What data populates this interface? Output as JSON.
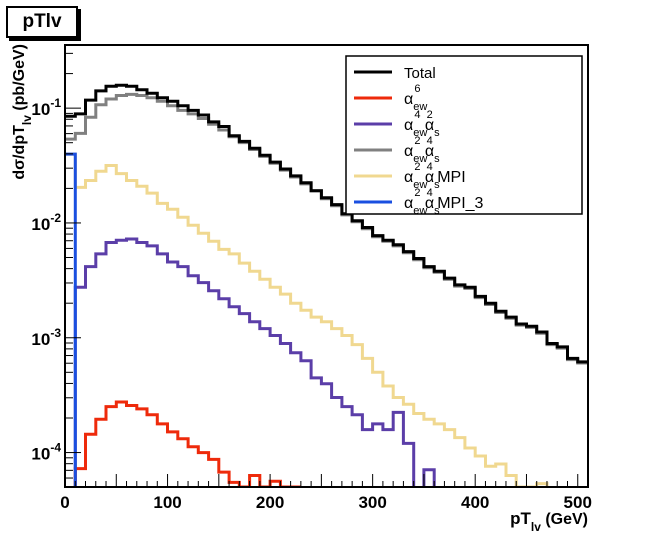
{
  "title_box": "pTlv",
  "chart_data": {
    "type": "line",
    "title": "pTlv",
    "xlabel": "pT_lv (GeV)",
    "xlabel_main": "pT",
    "xlabel_sub": "lv",
    "xlabel_unit": "(GeV)",
    "ylabel": "dσ/dpT_lv (pb/GeV)",
    "ylabel_main": "dσ/dpT",
    "ylabel_sub": "lv",
    "ylabel_unit": "(pb/GeV)",
    "xlim": [
      0,
      510
    ],
    "ylim_log10": [
      -4.3,
      -0.45
    ],
    "yscale": "log",
    "x_ticks": [
      0,
      100,
      200,
      300,
      400,
      500
    ],
    "x_tick_labels": [
      "0",
      "100",
      "200",
      "300",
      "400",
      "500"
    ],
    "y_tick_labels": [
      {
        "base": "10",
        "exp": "-1",
        "log": -1
      },
      {
        "base": "10",
        "exp": "-2",
        "log": -2
      },
      {
        "base": "10",
        "exp": "-3",
        "log": -3
      },
      {
        "base": "10",
        "exp": "-4",
        "log": -4
      }
    ],
    "bin_width": 10,
    "series": [
      {
        "name": "Total",
        "color": "#000000",
        "label_parts": [
          [
            "Total",
            ""
          ]
        ],
        "log_values": [
          -1.07,
          -1.05,
          -0.93,
          -0.85,
          -0.81,
          -0.8,
          -0.81,
          -0.84,
          -0.87,
          -0.91,
          -0.94,
          -0.98,
          -1.02,
          -1.06,
          -1.12,
          -1.16,
          -1.24,
          -1.29,
          -1.35,
          -1.41,
          -1.47,
          -1.53,
          -1.59,
          -1.65,
          -1.72,
          -1.78,
          -1.84,
          -1.92,
          -1.98,
          -2.04,
          -2.11,
          -2.15,
          -2.19,
          -2.25,
          -2.31,
          -2.38,
          -2.42,
          -2.48,
          -2.54,
          -2.56,
          -2.64,
          -2.7,
          -2.77,
          -2.82,
          -2.88,
          -2.9,
          -2.95,
          -3.05,
          -3.08,
          -3.18,
          -3.21
        ]
      },
      {
        "name": "α_ew^6",
        "color": "#ee2a0b",
        "label_parts": [
          [
            "α",
            ""
          ],
          [
            "ew",
            "sub"
          ],
          [
            "6",
            "sup"
          ]
        ],
        "log_values": [
          -5,
          -4.14,
          -3.84,
          -3.71,
          -3.6,
          -3.56,
          -3.59,
          -3.62,
          -3.67,
          -3.75,
          -3.82,
          -3.88,
          -3.95,
          -4.0,
          -4.06,
          -4.17,
          -4.26,
          -4.3,
          -4.2,
          -4.3,
          -4.25,
          -4.3,
          -4.3
        ]
      },
      {
        "name": "α_ew^4 α_s^2",
        "color": "#5b3ea8",
        "label_parts": [
          [
            "α",
            ""
          ],
          [
            "ew",
            "sub"
          ],
          [
            "4",
            "sup"
          ],
          [
            " α",
            ""
          ],
          [
            "s",
            "sub"
          ],
          [
            "2",
            "sup"
          ]
        ],
        "log_values": [
          -5,
          -2.56,
          -2.38,
          -2.27,
          -2.17,
          -2.15,
          -2.14,
          -2.17,
          -2.2,
          -2.27,
          -2.34,
          -2.38,
          -2.46,
          -2.52,
          -2.59,
          -2.66,
          -2.73,
          -2.79,
          -2.86,
          -2.92,
          -2.98,
          -3.05,
          -3.13,
          -3.2,
          -3.35,
          -3.4,
          -3.52,
          -3.6,
          -3.67,
          -3.8,
          -3.75,
          -3.8,
          -3.65,
          -3.92,
          -5,
          -4.15,
          -5
        ]
      },
      {
        "name": "α_ew^2 α_s^4",
        "color": "#808080",
        "label_parts": [
          [
            "α",
            ""
          ],
          [
            "ew",
            "sub"
          ],
          [
            "2",
            "sup"
          ],
          [
            " α",
            ""
          ],
          [
            "s",
            "sub"
          ],
          [
            "4",
            "sup"
          ]
        ],
        "log_values": [
          -1.27,
          -1.22,
          -1.08,
          -0.97,
          -0.92,
          -0.89,
          -0.88,
          -0.89,
          -0.91,
          -0.94,
          -0.98,
          -1.02,
          -1.05,
          -1.09,
          -1.14,
          -1.19,
          -1.25,
          -1.3,
          -1.36,
          -1.42,
          -1.48,
          -1.54,
          -1.6,
          -1.66,
          -1.72,
          -1.79,
          -1.85,
          -1.93,
          -1.99,
          -2.05,
          -2.12,
          -2.16,
          -2.2,
          -2.26,
          -2.32,
          -2.39,
          -2.43,
          -2.49,
          -2.55,
          -2.57,
          -2.65,
          -2.71,
          -2.78,
          -2.83,
          -2.89,
          -2.91,
          -2.96,
          -3.06,
          -3.09,
          -3.19,
          -3.22
        ]
      },
      {
        "name": "α_ew^2 α_s^4 MPI",
        "color": "#f0d890",
        "label_parts": [
          [
            "α",
            ""
          ],
          [
            "ew",
            "sub"
          ],
          [
            "2",
            "sup"
          ],
          [
            " α",
            ""
          ],
          [
            "s",
            "sub"
          ],
          [
            "4",
            "sup"
          ],
          [
            " MPI",
            ""
          ]
        ],
        "log_values": [
          -1.4,
          -1.69,
          -1.63,
          -1.55,
          -1.5,
          -1.57,
          -1.63,
          -1.68,
          -1.74,
          -1.83,
          -1.88,
          -1.95,
          -2.02,
          -2.09,
          -2.16,
          -2.23,
          -2.27,
          -2.35,
          -2.42,
          -2.49,
          -2.56,
          -2.62,
          -2.7,
          -2.76,
          -2.82,
          -2.86,
          -2.92,
          -2.98,
          -3.06,
          -3.18,
          -3.3,
          -3.42,
          -3.52,
          -3.58,
          -3.66,
          -3.71,
          -3.75,
          -3.8,
          -3.87,
          -3.96,
          -4.03,
          -4.12,
          -4.1,
          -4.2,
          -4.3,
          -4.3,
          -4.27,
          -5
        ]
      },
      {
        "name": "α_ew^2 α_s^4 MPI_3",
        "color": "#1a4fe0",
        "label_parts": [
          [
            "α",
            ""
          ],
          [
            "ew",
            "sub"
          ],
          [
            "2",
            "sup"
          ],
          [
            " α",
            ""
          ],
          [
            "s",
            "sub"
          ],
          [
            "4",
            "sup"
          ],
          [
            " MPI_3",
            ""
          ]
        ],
        "log_values": [
          -1.4,
          -5
        ]
      }
    ]
  }
}
